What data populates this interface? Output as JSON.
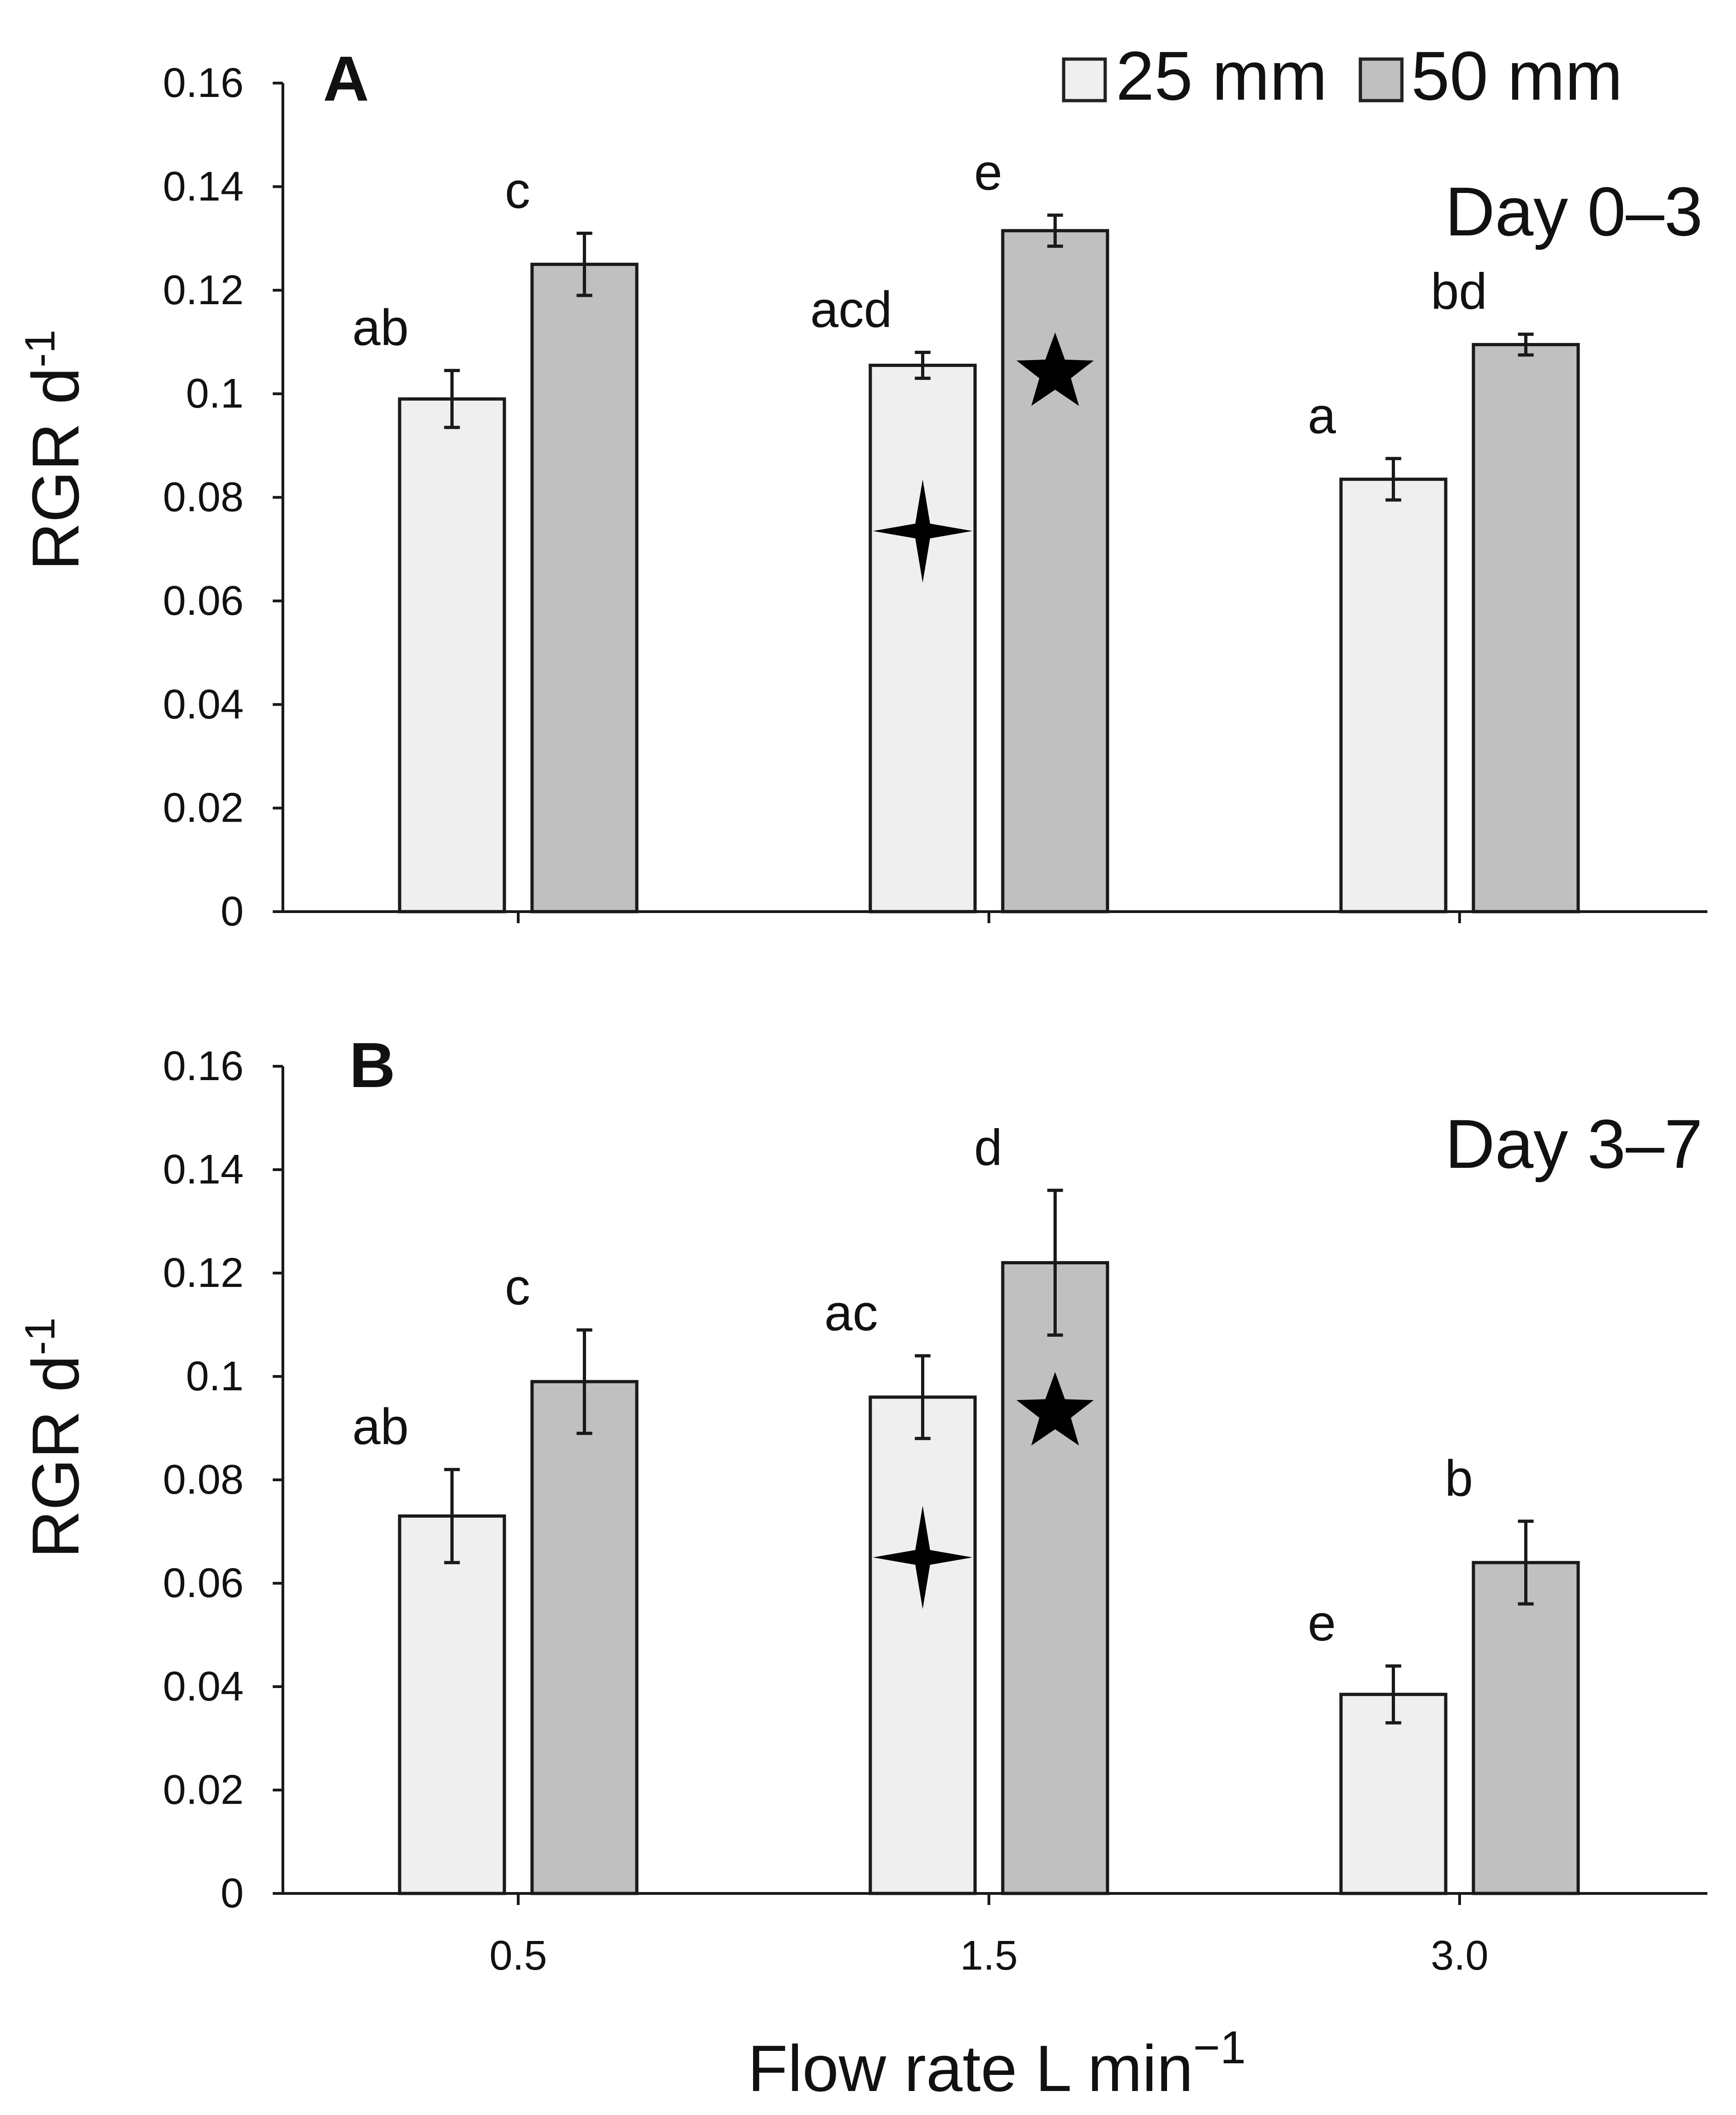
{
  "figure": {
    "xlabel": "Flow rate L min",
    "xlabel_sup": "−1",
    "legend": [
      {
        "label": "25 mm",
        "color": "#efefef"
      },
      {
        "label": "50 mm",
        "color": "#c0c0c0"
      }
    ]
  },
  "chart_data": [
    {
      "type": "bar",
      "panel_label": "A",
      "period": "Day 0–3",
      "ylabel": "RGR d",
      "ylabel_sup": "-1",
      "ylim": [
        0,
        0.16
      ],
      "yticks": [
        0,
        0.02,
        0.04,
        0.06,
        0.08,
        0.1,
        0.12,
        0.14,
        0.16
      ],
      "ytick_labels": [
        "0",
        "0.02",
        "0.04",
        "0.06",
        "0.08",
        "0.1",
        "0.12",
        "0.14",
        "0.16"
      ],
      "categories": [
        "0.5",
        "1.5",
        "3.0"
      ],
      "series": [
        {
          "name": "25 mm",
          "color": "#efefef",
          "values": [
            0.099,
            0.1055,
            0.0835
          ],
          "errors": [
            0.0055,
            0.0025,
            0.004
          ],
          "letters": [
            "ab",
            "acd",
            "a"
          ]
        },
        {
          "name": "50 mm",
          "color": "#c0c0c0",
          "values": [
            0.125,
            0.1315,
            0.1095
          ],
          "errors": [
            0.006,
            0.003,
            0.002
          ],
          "letters": [
            "c",
            "e",
            "bd"
          ]
        }
      ],
      "markers": [
        {
          "series": "25 mm",
          "category": "1.5",
          "value": 0.0735,
          "shape": "four-point-star"
        },
        {
          "series": "50 mm",
          "category": "1.5",
          "value": 0.104,
          "shape": "five-point-star"
        }
      ]
    },
    {
      "type": "bar",
      "panel_label": "B",
      "period": "Day 3–7",
      "ylabel": "RGR d",
      "ylabel_sup": "-1",
      "ylim": [
        0,
        0.16
      ],
      "yticks": [
        0,
        0.02,
        0.04,
        0.06,
        0.08,
        0.1,
        0.12,
        0.14,
        0.16
      ],
      "ytick_labels": [
        "0",
        "0.02",
        "0.04",
        "0.06",
        "0.08",
        "0.1",
        "0.12",
        "0.14",
        "0.16"
      ],
      "categories": [
        "0.5",
        "1.5",
        "3.0"
      ],
      "series": [
        {
          "name": "25 mm",
          "color": "#efefef",
          "values": [
            0.073,
            0.096,
            0.0385
          ],
          "errors": [
            0.009,
            0.008,
            0.0055
          ],
          "letters": [
            "ab",
            "ac",
            "e"
          ]
        },
        {
          "name": "50 mm",
          "color": "#c0c0c0",
          "values": [
            0.099,
            0.122,
            0.064
          ],
          "errors": [
            0.01,
            0.014,
            0.008
          ],
          "letters": [
            "c",
            "d",
            "b"
          ]
        }
      ],
      "markers": [
        {
          "series": "25 mm",
          "category": "1.5",
          "value": 0.065,
          "shape": "four-point-star"
        },
        {
          "series": "50 mm",
          "category": "1.5",
          "value": 0.093,
          "shape": "five-point-star"
        }
      ]
    }
  ]
}
